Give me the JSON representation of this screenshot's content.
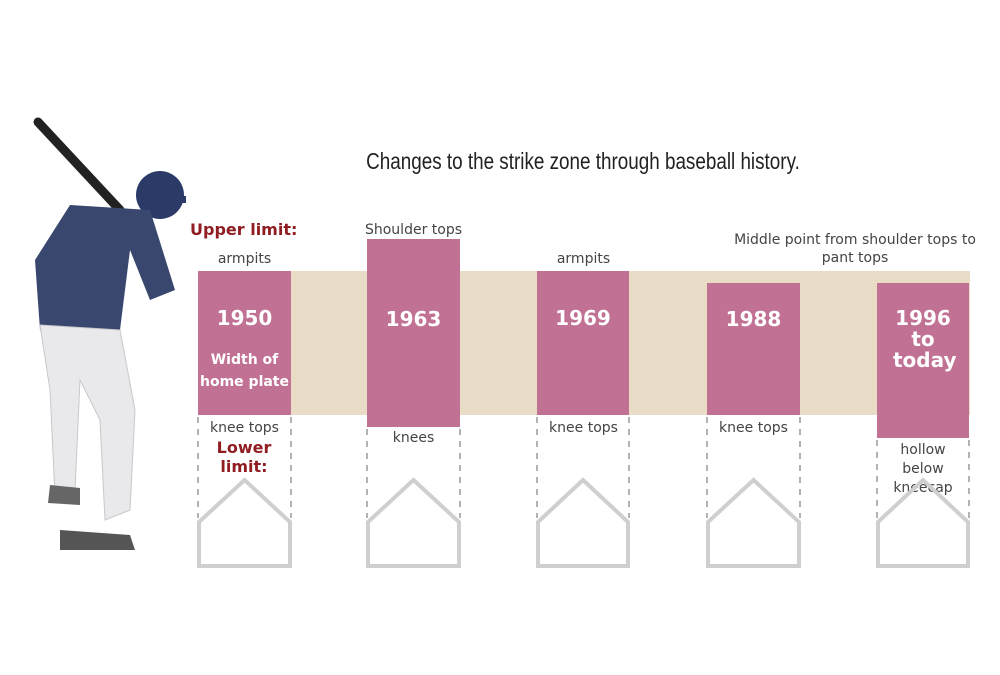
{
  "title": "Changes to the strike zone through baseball history.",
  "upper_limit_label": "Upper limit:",
  "lower_limit_label": "Lower limit:",
  "colors": {
    "zone": "#c17194",
    "band": "#e9dcc7",
    "limit_label": "#8f1d22",
    "plate": "#cfcfcf"
  },
  "eras": [
    {
      "year": "1950",
      "upper": "armpits",
      "lower": "knee tops",
      "note": "Width of home plate"
    },
    {
      "year": "1963",
      "upper": "Shoulder tops",
      "lower": "knees"
    },
    {
      "year": "1969",
      "upper": "armpits",
      "lower": "knee tops"
    },
    {
      "year": "1988",
      "upper": "Middle point from shoulder tops to pant tops",
      "lower": "knee tops"
    },
    {
      "year": "1996 to today",
      "lower": "hollow below kneecap"
    }
  ]
}
